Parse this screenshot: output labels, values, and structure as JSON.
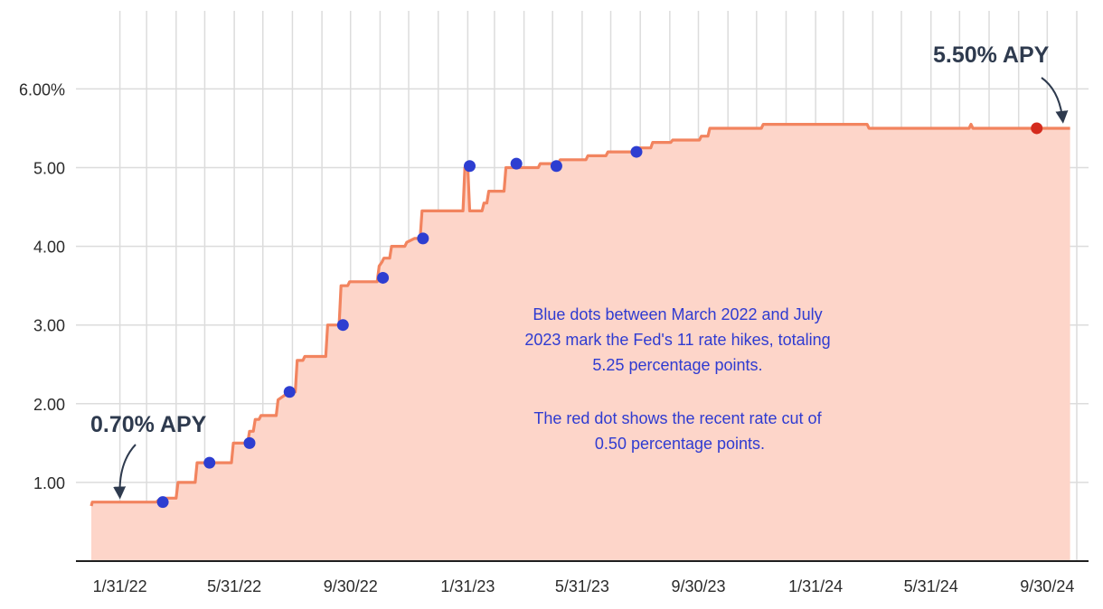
{
  "chart_data": {
    "type": "area",
    "x_ticks": [
      "1/31/22",
      "5/31/22",
      "9/30/22",
      "1/31/23",
      "5/31/23",
      "9/30/23",
      "1/31/24",
      "5/31/24",
      "9/30/24"
    ],
    "y_ticks": [
      "6.00%",
      "5.00",
      "4.00",
      "3.00",
      "2.00",
      "1.00"
    ],
    "y_tick_values": [
      6,
      5,
      4,
      3,
      2,
      1
    ],
    "xlim": [
      "2022-01-01",
      "2024-10-31"
    ],
    "ylim": [
      0,
      6.4
    ],
    "grid": true,
    "colors": {
      "line": "#f2845f",
      "fill": "#fdd5c9",
      "hike_dot": "#2d3ed1",
      "cut_dot": "#d42b1e",
      "grid": "#dcdcdc",
      "callout": "#2e3a4e",
      "note": "#2f3bd1"
    },
    "series": [
      {
        "points": [
          [
            "2022-01-01",
            0.7
          ],
          [
            "2022-01-02",
            0.75
          ],
          [
            "2022-03-10",
            0.75
          ],
          [
            "2022-03-15",
            0.8
          ],
          [
            "2022-03-31",
            0.8
          ],
          [
            "2022-04-02",
            1.0
          ],
          [
            "2022-04-20",
            1.0
          ],
          [
            "2022-04-22",
            1.25
          ],
          [
            "2022-05-28",
            1.25
          ],
          [
            "2022-05-30",
            1.5
          ],
          [
            "2022-06-14",
            1.5
          ],
          [
            "2022-06-16",
            1.65
          ],
          [
            "2022-06-20",
            1.65
          ],
          [
            "2022-06-22",
            1.8
          ],
          [
            "2022-06-26",
            1.8
          ],
          [
            "2022-06-28",
            1.85
          ],
          [
            "2022-07-14",
            1.85
          ],
          [
            "2022-07-16",
            2.05
          ],
          [
            "2022-07-28",
            2.15
          ],
          [
            "2022-08-03",
            2.15
          ],
          [
            "2022-08-05",
            2.55
          ],
          [
            "2022-08-11",
            2.55
          ],
          [
            "2022-08-13",
            2.6
          ],
          [
            "2022-09-04",
            2.6
          ],
          [
            "2022-09-06",
            3.0
          ],
          [
            "2022-09-18",
            3.0
          ],
          [
            "2022-09-20",
            3.5
          ],
          [
            "2022-09-27",
            3.5
          ],
          [
            "2022-09-29",
            3.55
          ],
          [
            "2022-10-28",
            3.55
          ],
          [
            "2022-10-30",
            3.75
          ],
          [
            "2022-11-02",
            3.8
          ],
          [
            "2022-11-04",
            3.85
          ],
          [
            "2022-11-10",
            3.85
          ],
          [
            "2022-11-12",
            4.0
          ],
          [
            "2022-11-26",
            4.0
          ],
          [
            "2022-11-28",
            4.05
          ],
          [
            "2022-12-06",
            4.1
          ],
          [
            "2022-12-12",
            4.1
          ],
          [
            "2022-12-14",
            4.45
          ],
          [
            "2023-01-26",
            4.45
          ],
          [
            "2023-01-28",
            5.0
          ],
          [
            "2023-01-31",
            5.0
          ],
          [
            "2023-02-02",
            4.45
          ],
          [
            "2023-02-15",
            4.45
          ],
          [
            "2023-02-17",
            4.55
          ],
          [
            "2023-02-20",
            4.55
          ],
          [
            "2023-02-22",
            4.7
          ],
          [
            "2023-03-10",
            4.7
          ],
          [
            "2023-03-12",
            5.0
          ],
          [
            "2023-04-15",
            5.0
          ],
          [
            "2023-04-17",
            5.05
          ],
          [
            "2023-05-06",
            5.05
          ],
          [
            "2023-05-08",
            5.1
          ],
          [
            "2023-06-04",
            5.1
          ],
          [
            "2023-06-06",
            5.15
          ],
          [
            "2023-06-25",
            5.15
          ],
          [
            "2023-06-27",
            5.2
          ],
          [
            "2023-07-25",
            5.2
          ],
          [
            "2023-07-27",
            5.25
          ],
          [
            "2023-08-11",
            5.25
          ],
          [
            "2023-08-13",
            5.32
          ],
          [
            "2023-09-01",
            5.32
          ],
          [
            "2023-09-03",
            5.35
          ],
          [
            "2023-10-01",
            5.35
          ],
          [
            "2023-10-03",
            5.4
          ],
          [
            "2023-10-10",
            5.4
          ],
          [
            "2023-10-12",
            5.5
          ],
          [
            "2023-12-05",
            5.5
          ],
          [
            "2023-12-07",
            5.55
          ],
          [
            "2024-03-25",
            5.55
          ],
          [
            "2024-03-27",
            5.5
          ],
          [
            "2024-07-10",
            5.5
          ],
          [
            "2024-07-12",
            5.55
          ],
          [
            "2024-07-14",
            5.5
          ],
          [
            "2024-10-24",
            5.5
          ]
        ]
      }
    ],
    "hike_dots": [
      [
        "2022-03-17",
        0.75
      ],
      [
        "2022-05-05",
        1.25
      ],
      [
        "2022-06-16",
        1.5
      ],
      [
        "2022-07-28",
        2.15
      ],
      [
        "2022-09-22",
        3.0
      ],
      [
        "2022-11-03",
        3.6
      ],
      [
        "2022-12-15",
        4.1
      ],
      [
        "2023-02-02",
        5.02
      ],
      [
        "2023-03-23",
        5.05
      ],
      [
        "2023-05-04",
        5.02
      ],
      [
        "2023-07-27",
        5.2
      ]
    ],
    "cut_dot": [
      "2024-09-19",
      5.5
    ],
    "annotations": [
      {
        "text": "0.70% APY",
        "point": [
          "2022-01-31",
          0.75
        ]
      },
      {
        "text": "5.50% APY",
        "point": [
          "2024-10-24",
          5.5
        ]
      }
    ],
    "note_lines": [
      "Blue dots between March 2022 and July",
      "2023 mark the Fed's 11 rate hikes, totaling",
      "5.25 percentage points.",
      "",
      "The red dot shows the recent rate cut of",
      "0.50 percentage points."
    ]
  }
}
